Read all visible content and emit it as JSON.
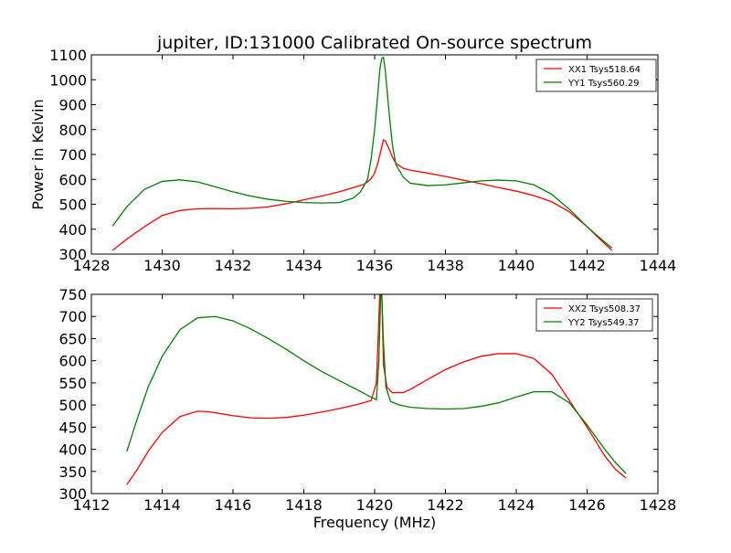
{
  "figure_title": "jupiter, ID:131000 Calibrated On-source spectrum",
  "chart_data": [
    {
      "type": "line",
      "title": "jupiter, ID:131000 Calibrated On-source spectrum",
      "xlabel": "",
      "ylabel": "Power in Kelvin",
      "xlim": [
        1428,
        1444
      ],
      "ylim": [
        300,
        1100
      ],
      "xticks": [
        "1428",
        "1430",
        "1432",
        "1434",
        "1436",
        "1438",
        "1440",
        "1442",
        "1444"
      ],
      "yticks": [
        "300",
        "400",
        "500",
        "600",
        "700",
        "800",
        "900",
        "1000",
        "1100"
      ],
      "legend_position": "top-right",
      "grid": false,
      "series": [
        {
          "name": "XX1 Tsys518.64",
          "color": "#ff0000",
          "x": [
            1428.6,
            1429.0,
            1429.5,
            1430.0,
            1430.5,
            1431.0,
            1431.5,
            1432.0,
            1432.5,
            1433.0,
            1433.5,
            1434.0,
            1434.5,
            1435.0,
            1435.4,
            1435.7,
            1435.8,
            1435.9,
            1436.0,
            1436.1,
            1436.2,
            1436.25,
            1436.3,
            1436.4,
            1436.5,
            1436.6,
            1436.8,
            1437.0,
            1437.5,
            1438.0,
            1438.5,
            1439.0,
            1439.5,
            1440.0,
            1440.5,
            1441.0,
            1441.5,
            1442.0,
            1442.4,
            1442.7
          ],
          "y": [
            315,
            360,
            410,
            455,
            475,
            482,
            483,
            482,
            484,
            490,
            502,
            518,
            533,
            550,
            567,
            580,
            590,
            603,
            625,
            670,
            730,
            758,
            755,
            725,
            690,
            665,
            645,
            637,
            625,
            612,
            597,
            583,
            567,
            553,
            535,
            510,
            470,
            410,
            355,
            315
          ]
        },
        {
          "name": "YY1 Tsys560.29",
          "color": "#008000",
          "x": [
            1428.6,
            1429.0,
            1429.5,
            1430.0,
            1430.5,
            1431.0,
            1431.5,
            1432.0,
            1432.5,
            1433.0,
            1433.5,
            1434.0,
            1434.5,
            1435.0,
            1435.4,
            1435.6,
            1435.8,
            1435.9,
            1436.0,
            1436.1,
            1436.15,
            1436.2,
            1436.25,
            1436.3,
            1436.4,
            1436.5,
            1436.6,
            1436.8,
            1437.0,
            1437.5,
            1438.0,
            1438.5,
            1439.0,
            1439.5,
            1440.0,
            1440.5,
            1441.0,
            1441.5,
            1442.0,
            1442.4,
            1442.7
          ],
          "y": [
            413,
            490,
            560,
            592,
            598,
            590,
            570,
            550,
            533,
            520,
            512,
            507,
            505,
            507,
            525,
            550,
            600,
            680,
            800,
            960,
            1045,
            1085,
            1090,
            1040,
            880,
            740,
            660,
            610,
            585,
            575,
            578,
            586,
            594,
            597,
            594,
            578,
            540,
            480,
            410,
            360,
            325
          ]
        }
      ]
    },
    {
      "type": "line",
      "title": "",
      "xlabel": "Frequency (MHz)",
      "ylabel": "",
      "xlim": [
        1412,
        1428
      ],
      "ylim": [
        300,
        750
      ],
      "xticks": [
        "1412",
        "1414",
        "1416",
        "1418",
        "1420",
        "1422",
        "1424",
        "1426",
        "1428"
      ],
      "yticks": [
        "300",
        "350",
        "400",
        "450",
        "500",
        "550",
        "600",
        "650",
        "700",
        "750"
      ],
      "legend_position": "top-right",
      "grid": false,
      "series": [
        {
          "name": "XX2 Tsys508.37",
          "color": "#ff0000",
          "x": [
            1413.0,
            1413.3,
            1413.6,
            1414.0,
            1414.5,
            1415.0,
            1415.3,
            1415.7,
            1416.0,
            1416.5,
            1417.0,
            1417.5,
            1418.0,
            1418.5,
            1419.0,
            1419.5,
            1419.9,
            1420.05,
            1420.15,
            1420.2,
            1420.25,
            1420.35,
            1420.5,
            1420.8,
            1421.0,
            1421.5,
            1422.0,
            1422.5,
            1423.0,
            1423.5,
            1424.0,
            1424.5,
            1425.0,
            1425.5,
            1426.0,
            1426.5,
            1426.8,
            1427.1
          ],
          "y": [
            320,
            355,
            395,
            438,
            474,
            486,
            485,
            480,
            476,
            471,
            470,
            472,
            477,
            484,
            492,
            501,
            510,
            550,
            760,
            760,
            590,
            540,
            528,
            528,
            535,
            558,
            580,
            597,
            610,
            616,
            616,
            605,
            570,
            510,
            450,
            385,
            355,
            335
          ]
        },
        {
          "name": "YY2 Tsys549.37",
          "color": "#008000",
          "x": [
            1413.0,
            1413.3,
            1413.6,
            1414.0,
            1414.5,
            1415.0,
            1415.5,
            1416.0,
            1416.5,
            1417.0,
            1417.5,
            1418.0,
            1418.5,
            1419.0,
            1419.5,
            1419.9,
            1420.05,
            1420.12,
            1420.17,
            1420.2,
            1420.25,
            1420.32,
            1420.45,
            1420.7,
            1421.0,
            1421.5,
            1422.0,
            1422.5,
            1423.0,
            1423.5,
            1424.0,
            1424.5,
            1425.0,
            1425.5,
            1426.0,
            1426.5,
            1426.8,
            1427.1
          ],
          "y": [
            395,
            470,
            540,
            610,
            670,
            697,
            700,
            690,
            672,
            650,
            626,
            600,
            576,
            555,
            535,
            518,
            512,
            600,
            750,
            750,
            640,
            540,
            508,
            500,
            495,
            492,
            491,
            492,
            497,
            505,
            518,
            530,
            530,
            505,
            455,
            400,
            370,
            345
          ]
        }
      ]
    }
  ]
}
